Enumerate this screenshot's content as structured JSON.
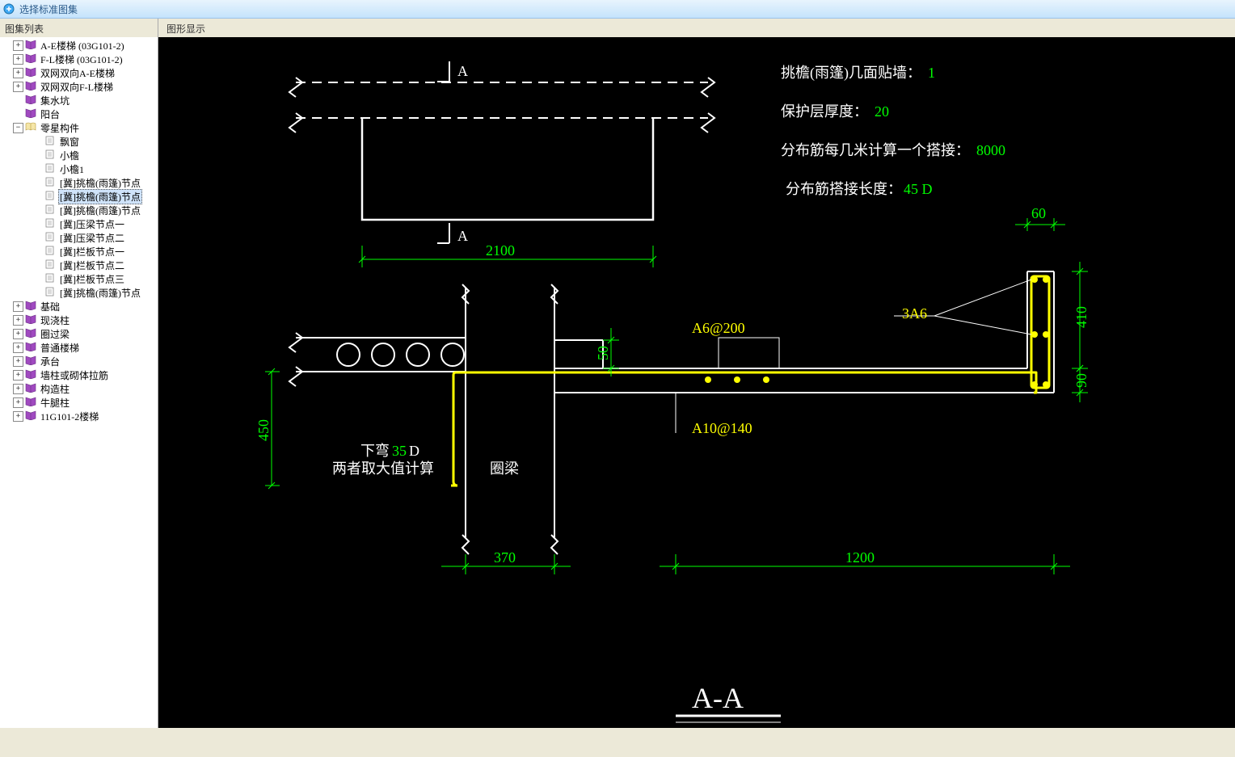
{
  "window": {
    "title": "选择标准图集"
  },
  "left": {
    "header": "图集列表",
    "tree": [
      {
        "level": 1,
        "icon": "book-closed",
        "exp": "▸",
        "label": "A-E楼梯 (03G101-2)"
      },
      {
        "level": 1,
        "icon": "book-closed",
        "exp": "▸",
        "label": "F-L楼梯 (03G101-2)"
      },
      {
        "level": 1,
        "icon": "book-closed",
        "exp": "▸",
        "label": "双网双向A-E楼梯"
      },
      {
        "level": 1,
        "icon": "book-closed",
        "exp": "▸",
        "label": "双网双向F-L楼梯"
      },
      {
        "level": 1,
        "icon": "book-closed",
        "exp": "",
        "label": "集水坑"
      },
      {
        "level": 1,
        "icon": "book-closed",
        "exp": "",
        "label": "阳台"
      },
      {
        "level": 1,
        "icon": "book-open",
        "exp": "▾",
        "label": "零星构件"
      },
      {
        "level": 2,
        "icon": "doc",
        "exp": "",
        "label": "飘窗"
      },
      {
        "level": 2,
        "icon": "doc",
        "exp": "",
        "label": "小檐"
      },
      {
        "level": 2,
        "icon": "doc",
        "exp": "",
        "label": "小檐1"
      },
      {
        "level": 2,
        "icon": "doc",
        "exp": "",
        "label": "[冀]挑檐(雨篷)节点"
      },
      {
        "level": 2,
        "icon": "doc",
        "exp": "",
        "label": "[冀]挑檐(雨篷)节点",
        "selected": true
      },
      {
        "level": 2,
        "icon": "doc",
        "exp": "",
        "label": "[冀]挑檐(雨篷)节点"
      },
      {
        "level": 2,
        "icon": "doc",
        "exp": "",
        "label": "[冀]压梁节点一"
      },
      {
        "level": 2,
        "icon": "doc",
        "exp": "",
        "label": "[冀]压梁节点二"
      },
      {
        "level": 2,
        "icon": "doc",
        "exp": "",
        "label": "[冀]栏板节点一"
      },
      {
        "level": 2,
        "icon": "doc",
        "exp": "",
        "label": "[冀]栏板节点二"
      },
      {
        "level": 2,
        "icon": "doc",
        "exp": "",
        "label": "[冀]栏板节点三"
      },
      {
        "level": 2,
        "icon": "doc",
        "exp": "",
        "label": "[冀]挑檐(雨篷)节点"
      },
      {
        "level": 1,
        "icon": "book-closed",
        "exp": "▸",
        "label": "基础"
      },
      {
        "level": 1,
        "icon": "book-closed",
        "exp": "▸",
        "label": "现浇柱"
      },
      {
        "level": 1,
        "icon": "book-closed",
        "exp": "▸",
        "label": "圈过梁"
      },
      {
        "level": 1,
        "icon": "book-closed",
        "exp": "▸",
        "label": "普通楼梯"
      },
      {
        "level": 1,
        "icon": "book-closed",
        "exp": "▸",
        "label": "承台"
      },
      {
        "level": 1,
        "icon": "book-closed",
        "exp": "▸",
        "label": "墙柱或砌体拉筋"
      },
      {
        "level": 1,
        "icon": "book-closed",
        "exp": "▸",
        "label": "构造柱"
      },
      {
        "level": 1,
        "icon": "book-closed",
        "exp": "▸",
        "label": "牛腿柱"
      },
      {
        "level": 1,
        "icon": "book-closed",
        "exp": "▸",
        "label": "11G101-2楼梯"
      }
    ]
  },
  "right": {
    "header": "图形显示"
  },
  "params": {
    "p1_label": "挑檐(雨篷)几面贴墙：",
    "p1_val": "1",
    "p2_label": "保护层厚度：",
    "p2_val": "20",
    "p3_label": "分布筋每几米计算一个搭接：",
    "p3_val": "8000",
    "p4_label": "分布筋搭接长度：",
    "p4_val": "45 D"
  },
  "drawing": {
    "section_label_top": "A",
    "section_label_bot": "A",
    "plan_width": "2100",
    "col_width": "370",
    "span_right": "1200",
    "upstand_w": "60",
    "upstand_h": "410",
    "slab_t": "90",
    "slab_gap": "50",
    "left_drop": "450",
    "rebar_top": "A6@200",
    "rebar_bot": "A10@140",
    "rebar_upstand": "3A6",
    "ring_beam": "圈梁",
    "bend_note_l1": "下弯",
    "bend_note_val": "35",
    "bend_note_suffix": "D",
    "bend_note_l2": "两者取大值计算",
    "section_title": "A-A",
    "colors": {
      "bg": "#000000",
      "outline": "#ffffff",
      "dims": "#00ff00",
      "rebar": "#ffff00"
    }
  }
}
